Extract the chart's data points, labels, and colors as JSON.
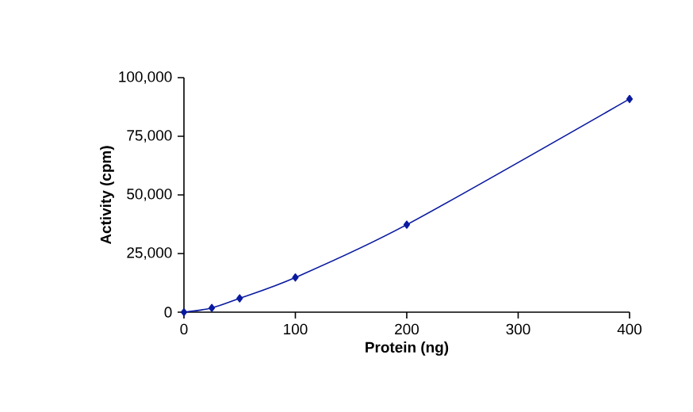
{
  "chart_data": {
    "type": "line",
    "xlabel": "Protein (ng)",
    "ylabel": "Activity (cpm)",
    "x": [
      0,
      25,
      50,
      100,
      200,
      400
    ],
    "series": [
      {
        "color": "#0a1aa0",
        "values": [
          0,
          1800,
          5900,
          14800,
          37300,
          90900
        ]
      }
    ],
    "xlim": [
      0,
      400
    ],
    "xticks": [
      0,
      100,
      200,
      300,
      400
    ],
    "ylim": [
      0,
      100000
    ],
    "yticks": [
      {
        "value": 0,
        "label": "0"
      },
      {
        "value": 25000,
        "label": "25,000"
      },
      {
        "value": 50000,
        "label": "50,000"
      },
      {
        "value": 75000,
        "label": "75,000"
      },
      {
        "value": 100000,
        "label": "100,000"
      }
    ],
    "marker": "diamond",
    "line_style": "solid"
  }
}
